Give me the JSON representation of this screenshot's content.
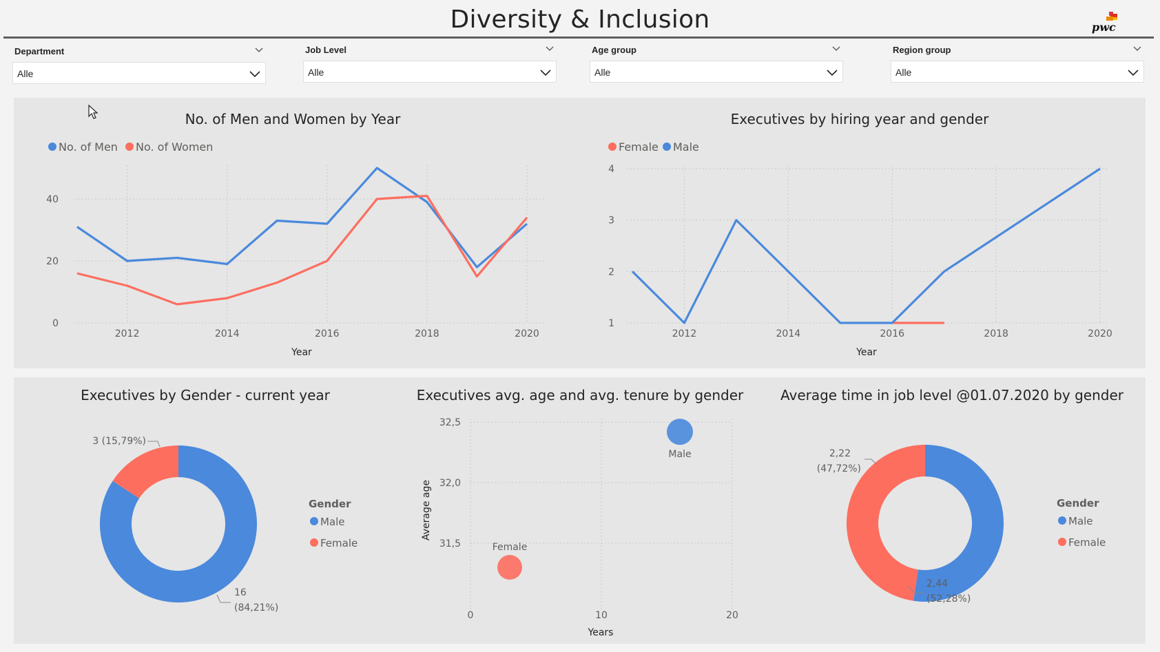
{
  "header": {
    "title": "Diversity & Inclusion",
    "logo_text": "pwc"
  },
  "filters": [
    {
      "label": "Department",
      "value": "Alle"
    },
    {
      "label": "Job Level",
      "value": "Alle"
    },
    {
      "label": "Age group",
      "value": "Alle"
    },
    {
      "label": "Region group",
      "value": "Alle"
    }
  ],
  "colors": {
    "men": "#4a89dc",
    "women": "#fd6e5f",
    "grid": "#c8c8c8",
    "panel": "#e6e6e6"
  },
  "chart_data": [
    {
      "id": "men_women_by_year",
      "type": "line",
      "title": "No. of Men and Women by Year",
      "xlabel": "Year",
      "ylabel": "",
      "x": [
        2011,
        2012,
        2013,
        2014,
        2015,
        2016,
        2017,
        2018,
        2019,
        2020
      ],
      "series": [
        {
          "name": "No. of Men",
          "values": [
            31,
            20,
            21,
            19,
            33,
            32,
            50,
            39,
            18,
            32
          ]
        },
        {
          "name": "No. of Women",
          "values": [
            16,
            12,
            6,
            8,
            13,
            20,
            40,
            41,
            15,
            34
          ]
        }
      ],
      "xticks": [
        "2012",
        "2014",
        "2016",
        "2018",
        "2020"
      ],
      "yticks": [
        "0",
        "20",
        "40"
      ],
      "xlim": [
        2011,
        2020
      ],
      "ylim": [
        0,
        50
      ],
      "legend": "top-left",
      "grid": true
    },
    {
      "id": "executives_hiring_year",
      "type": "line",
      "title": "Executives by hiring year and gender",
      "xlabel": "Year",
      "ylabel": "",
      "series": [
        {
          "name": "Female",
          "x": [
            2016,
            2017
          ],
          "values": [
            1,
            1
          ]
        },
        {
          "name": "Male",
          "x": [
            2011,
            2012,
            2013,
            2014,
            2015,
            2016,
            2017,
            2020
          ],
          "values": [
            2,
            1,
            3,
            2,
            1,
            1,
            2,
            4
          ]
        }
      ],
      "xticks": [
        "2012",
        "2014",
        "2016",
        "2018",
        "2020"
      ],
      "yticks": [
        "1",
        "2",
        "3",
        "4"
      ],
      "xlim": [
        2011,
        2020
      ],
      "ylim": [
        1,
        4
      ],
      "legend": "top-left",
      "grid": true
    },
    {
      "id": "executives_by_gender",
      "type": "pie",
      "title": "Executives by Gender - current year",
      "legend_title": "Gender",
      "slices": [
        {
          "name": "Male",
          "value": 16,
          "label_line1": "16",
          "label_line2": "(84,21%)"
        },
        {
          "name": "Female",
          "value": 3,
          "label_line1": "3 (15,79%)",
          "label_line2": ""
        }
      ],
      "legend": "right"
    },
    {
      "id": "exec_age_tenure",
      "type": "scatter",
      "title": "Executives avg. age and avg. tenure by gender",
      "xlabel": "Years",
      "ylabel": "Average age",
      "points": [
        {
          "name": "Female",
          "x": 3,
          "y": 31.3
        },
        {
          "name": "Male",
          "x": 16,
          "y": 32.42
        }
      ],
      "xticks": [
        "0",
        "10",
        "20"
      ],
      "yticks": [
        "31,5",
        "32,0",
        "32,5"
      ],
      "xlim": [
        0,
        20
      ],
      "ylim": [
        31.05,
        32.6
      ],
      "grid": true
    },
    {
      "id": "avg_time_job_level",
      "type": "pie",
      "title": "Average time in job level @01.07.2020 by gender",
      "legend_title": "Gender",
      "slices": [
        {
          "name": "Male",
          "value": 2.44,
          "label_line1": "2,44",
          "label_line2": "(52,28%)"
        },
        {
          "name": "Female",
          "value": 2.22,
          "label_line1": "2,22",
          "label_line2": "(47,72%)"
        }
      ],
      "legend": "right"
    }
  ]
}
